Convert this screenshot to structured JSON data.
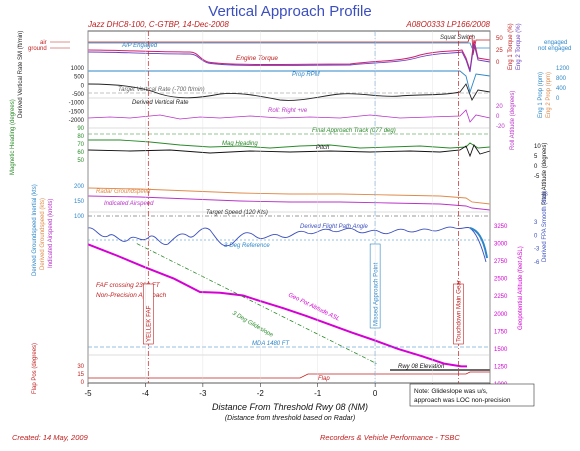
{
  "chart_data": {
    "type": "line",
    "title": "Vertical Approach Profile",
    "subtitle_left": "Jazz DHC8-100, C-GTBP, 14-Dec-2008",
    "subtitle_right": "A08O0333  LP166/2008",
    "xlabel": "Distance From Threshold Rwy 08 (NM)",
    "xlabel_sub": "(Distance from threshold based on Radar)",
    "xlim": [
      -5,
      2
    ],
    "x_ticks": [
      "-5",
      "-4",
      "-3",
      "-2",
      "-1",
      "0",
      "1",
      "2"
    ],
    "colors": {
      "torque1": "#d01f6f",
      "torque2": "#6a3fbf",
      "prop_rpm": "#2d86c8",
      "vert_rate": "#222222",
      "roll": "#b933c8",
      "mag_heading": "#2a8a2a",
      "pitch": "#111111",
      "radar_gs": "#e08a4a",
      "ias": "#b933c8",
      "fpa": "#3b4fbf",
      "alt": "#d400d4",
      "ref": "#2a8a2a",
      "title": "#3b4fbf"
    },
    "bands": {
      "air_ground": {
        "left_labels": [
          "air",
          "ground"
        ],
        "right_labels": [
          "engaged",
          "not engaged"
        ],
        "series_labels": [
          "A/P Engaged",
          "Squat Switch"
        ]
      },
      "torque": {
        "labels": [
          "Engine Torque"
        ],
        "right_axis": [
          "Eng 1 Torque (%)",
          "Eng 2 Torque (%)"
        ],
        "right_ticks": [
          "50",
          "25",
          "0"
        ]
      },
      "rpm": {
        "label": "Prop RPM",
        "right_axis": [
          "Eng 1 Prop (rpm)",
          "Eng 2 Prop (rpm)"
        ],
        "right_ticks": [
          "1200",
          "800",
          "400",
          "0"
        ]
      },
      "vertical_rate": {
        "left_axis": "Derived Vertical Rate SM (ft/min)",
        "left_ticks": [
          "1000",
          "500",
          "0",
          "-500",
          "-1000",
          "-1500",
          "-2000"
        ],
        "labels": [
          "Target Vertical Rate (-700 ft/min)",
          "Derived Vertical Rate"
        ],
        "target": -700
      },
      "roll": {
        "label": "Roll: Right +ve",
        "right_axis": "Roll Attitude (degrees)",
        "right_ticks": [
          "20",
          "0",
          "-20"
        ]
      },
      "heading": {
        "left_axis": "Magnetic Heading (degrees)",
        "left_ticks": [
          "90",
          "80",
          "70",
          "60",
          "50"
        ],
        "labels": [
          "Final Approach Track (077 deg)",
          "Mag Heading"
        ],
        "final_track": 77
      },
      "pitch": {
        "label": "Pitch",
        "right_axis": "Pitch Attitude (degrees)",
        "right_ticks": [
          "10",
          "5",
          "0",
          "-5"
        ]
      },
      "speed": {
        "left_axis": [
          "Derived Groundspeed Inertial (kts)",
          "Derived Groundspeed (kts)",
          "Indicated Airspeed (knots)"
        ],
        "left_ticks": [
          "200",
          "150",
          "100"
        ],
        "labels": [
          "Radar Groundspeed",
          "Indicated Airspeed",
          "Target Speed (120 Kts)"
        ],
        "target": 120
      },
      "fpa": {
        "labels": [
          "Derived Flight Path Angle",
          "3-Deg Reference"
        ],
        "right_axis": "Derived FPA Smooth (deg)",
        "right_ticks": [
          "3",
          "0",
          "-3",
          "-6"
        ]
      },
      "altitude": {
        "right_axis": "Geopotential Altitude (feet ASL)",
        "right_ticks": [
          "3250",
          "3000",
          "2750",
          "2500",
          "2250",
          "2000",
          "1750",
          "1500",
          "1250",
          "1000"
        ],
        "labels": [
          "FAF crossing 2300 FT",
          "Non-Precision Approach",
          "Geo Pot Altitude ASL",
          "3 Deg Glideslope",
          "MDA 1480 FT",
          "Rwy 08 Elevation"
        ],
        "mda": 1480,
        "rwy_elev": 1230,
        "alt_x": [
          -5.0,
          -4.5,
          -4.0,
          -3.5,
          -3.05,
          -2.7,
          -2.3,
          -2.0,
          -1.6,
          -1.2,
          -0.8,
          -0.4,
          0.0,
          0.4,
          0.8,
          1.2,
          1.5,
          1.6
        ],
        "alt_y": [
          2990,
          2830,
          2660,
          2500,
          2310,
          2300,
          2260,
          2180,
          2080,
          1970,
          1850,
          1730,
          1620,
          1500,
          1400,
          1290,
          1250,
          1250
        ],
        "glideslope_x": [
          -4.15,
          0.05
        ],
        "glideslope_y": [
          3000,
          1280
        ]
      },
      "flap": {
        "left_axis": "Flap Pos (degrees)",
        "left_ticks": [
          "30",
          "15",
          "0"
        ],
        "label": "Flap"
      }
    },
    "vertical_markers": [
      {
        "x": -3.95,
        "label": "YELLEK FAF"
      },
      {
        "x": 0.0,
        "label": "Missed Approach Point"
      },
      {
        "x": 1.45,
        "label": "Touchdown Main Gear"
      }
    ],
    "note": [
      "Note: Glideslope was u/s,",
      "approach was LOC non-precision"
    ],
    "footer_left": "Created: 14 May, 2009",
    "footer_right": "Recorders & Vehicle Performance - TSBC"
  }
}
